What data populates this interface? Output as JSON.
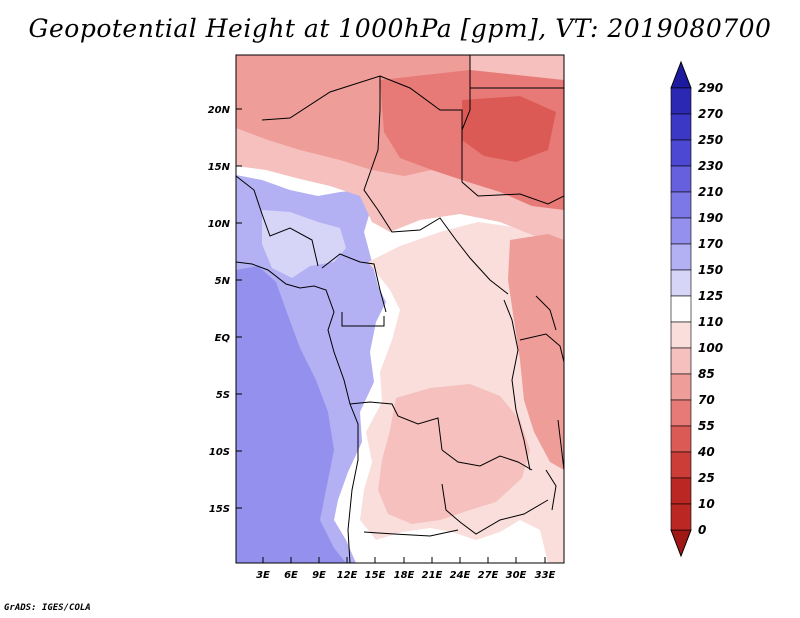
{
  "title": "Geopotential Height at 1000hPa [gpm], VT: 2019080700",
  "footer": "GrADS: IGES/COLA",
  "map": {
    "variable": "Geopotential Height",
    "level": "1000hPa",
    "units": "gpm",
    "valid_time": "2019080700",
    "lat_labels": [
      "20N",
      "15N",
      "10N",
      "5N",
      "EQ",
      "5S",
      "10S",
      "15S"
    ],
    "lat_values": [
      20,
      15,
      10,
      5,
      0,
      -5,
      -10,
      -15
    ],
    "lon_labels": [
      "3E",
      "6E",
      "9E",
      "12E",
      "15E",
      "18E",
      "21E",
      "24E",
      "27E",
      "30E",
      "33E"
    ],
    "lon_values": [
      3,
      6,
      9,
      12,
      15,
      18,
      21,
      24,
      27,
      30,
      33
    ]
  },
  "colorbar": {
    "labels": [
      "290",
      "270",
      "250",
      "230",
      "210",
      "190",
      "170",
      "150",
      "125",
      "110",
      "100",
      "85",
      "70",
      "55",
      "40",
      "25",
      "10",
      "0"
    ],
    "colors": [
      "#1e1aa0",
      "#2b28b4",
      "#3c38c6",
      "#4c48d4",
      "#6760de",
      "#7d78e8",
      "#9490ee",
      "#b3b1f4",
      "#d6d5f8",
      "#ffffff",
      "#f9dedc",
      "#f5c0bd",
      "#ef9d99",
      "#e77a76",
      "#dc5a56",
      "#cd3d38",
      "#bb2723",
      "#a01816"
    ]
  },
  "regions": [
    {
      "name": "atlantic-low-southwest",
      "color": "#9490ee"
    },
    {
      "name": "atlantic-ocean",
      "color": "#b3b1f4"
    },
    {
      "name": "gulf-coast",
      "color": "#d6d5f8"
    },
    {
      "name": "central-neutral",
      "color": "#ffffff"
    },
    {
      "name": "congo-basin",
      "color": "#f9dedc"
    },
    {
      "name": "southern-interior",
      "color": "#f5c0bd"
    },
    {
      "name": "sahel-band",
      "color": "#f5c0bd"
    },
    {
      "name": "sahara-west",
      "color": "#ef9d99"
    },
    {
      "name": "sudan-high",
      "color": "#e77a76"
    },
    {
      "name": "sudan-core",
      "color": "#dc5a56"
    },
    {
      "name": "east-africa",
      "color": "#ef9d99"
    }
  ]
}
